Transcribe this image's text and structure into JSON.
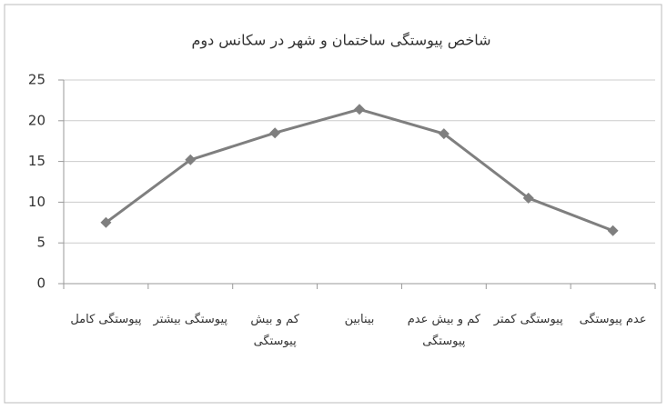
{
  "chart_data": {
    "type": "line",
    "title": "شاخص پیوستگی ساختمان و شهر در سکانس دوم",
    "categories": [
      "پیوستگی کامل",
      "پیوستگی بیشتر",
      "کم و بیش پیوستگی",
      "بینابین",
      "کم و بیش عدم پیوستگی",
      "پیوستگی کمتر",
      "عدم پیوستگی"
    ],
    "values": [
      7.5,
      15.2,
      18.5,
      21.4,
      18.4,
      10.5,
      6.5
    ],
    "color": "#7f7f7f",
    "ylim": [
      0,
      25
    ],
    "yticks": [
      0,
      5,
      10,
      15,
      20,
      25
    ],
    "grid": true
  }
}
